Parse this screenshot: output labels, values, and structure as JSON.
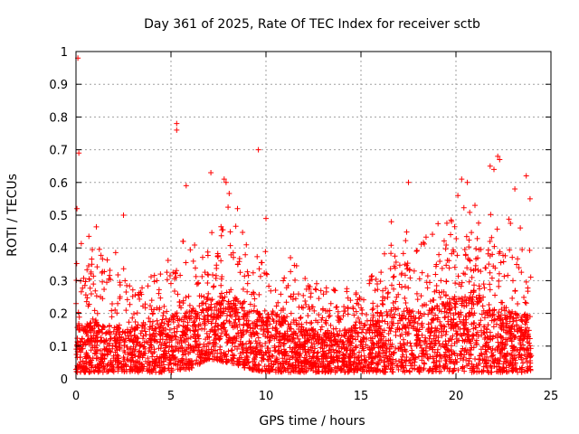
{
  "chart_data": {
    "type": "scatter",
    "title": "Day 361 of 2025, Rate Of TEC Index for receiver sctb",
    "xlabel": "GPS time / hours",
    "ylabel": "ROTI / TECUs",
    "xlim": [
      0,
      25
    ],
    "ylim": [
      0,
      1
    ],
    "xticks": [
      0,
      5,
      10,
      15,
      20,
      25
    ],
    "yticks": [
      0,
      0.1,
      0.2,
      0.3,
      0.4,
      0.5,
      0.6,
      0.7,
      0.8,
      0.9,
      1
    ],
    "grid": true,
    "marker": "+",
    "color": "#ff0000",
    "series": [
      {
        "notable_points": [
          {
            "x": 0.1,
            "y": 0.98
          },
          {
            "x": 0.15,
            "y": 0.69
          },
          {
            "x": 0.05,
            "y": 0.52
          },
          {
            "x": 5.3,
            "y": 0.78
          },
          {
            "x": 5.3,
            "y": 0.76
          },
          {
            "x": 9.6,
            "y": 0.7
          },
          {
            "x": 7.1,
            "y": 0.63
          },
          {
            "x": 5.8,
            "y": 0.59
          },
          {
            "x": 7.8,
            "y": 0.61
          },
          {
            "x": 7.9,
            "y": 0.6
          },
          {
            "x": 17.5,
            "y": 0.6
          },
          {
            "x": 20.3,
            "y": 0.61
          },
          {
            "x": 20.6,
            "y": 0.6
          },
          {
            "x": 22.2,
            "y": 0.68
          },
          {
            "x": 22.3,
            "y": 0.67
          },
          {
            "x": 22.0,
            "y": 0.64
          },
          {
            "x": 21.8,
            "y": 0.65
          },
          {
            "x": 23.7,
            "y": 0.62
          },
          {
            "x": 20.1,
            "y": 0.56
          },
          {
            "x": 23.1,
            "y": 0.58
          },
          {
            "x": 23.9,
            "y": 0.55
          },
          {
            "x": 10.0,
            "y": 0.49
          },
          {
            "x": 2.5,
            "y": 0.5
          },
          {
            "x": 16.6,
            "y": 0.48
          },
          {
            "x": 21.0,
            "y": 0.53
          },
          {
            "x": 8.5,
            "y": 0.52
          }
        ],
        "envelope": [
          {
            "x": 0,
            "low": 0.02,
            "typ": 0.1,
            "high": 0.4
          },
          {
            "x": 1,
            "low": 0.02,
            "typ": 0.11,
            "high": 0.45
          },
          {
            "x": 2,
            "low": 0.02,
            "typ": 0.1,
            "high": 0.38
          },
          {
            "x": 3,
            "low": 0.02,
            "typ": 0.1,
            "high": 0.35
          },
          {
            "x": 4,
            "low": 0.02,
            "typ": 0.11,
            "high": 0.3
          },
          {
            "x": 5,
            "low": 0.02,
            "typ": 0.12,
            "high": 0.42
          },
          {
            "x": 6,
            "low": 0.03,
            "typ": 0.13,
            "high": 0.4
          },
          {
            "x": 7,
            "low": 0.06,
            "typ": 0.16,
            "high": 0.42
          },
          {
            "x": 8,
            "low": 0.05,
            "typ": 0.17,
            "high": 0.55
          },
          {
            "x": 9,
            "low": 0.03,
            "typ": 0.14,
            "high": 0.42
          },
          {
            "x": 10,
            "low": 0.02,
            "typ": 0.12,
            "high": 0.38
          },
          {
            "x": 11,
            "low": 0.02,
            "typ": 0.12,
            "high": 0.4
          },
          {
            "x": 12,
            "low": 0.02,
            "typ": 0.1,
            "high": 0.3
          },
          {
            "x": 13,
            "low": 0.02,
            "typ": 0.09,
            "high": 0.28
          },
          {
            "x": 14,
            "low": 0.02,
            "typ": 0.09,
            "high": 0.25
          },
          {
            "x": 15,
            "low": 0.02,
            "typ": 0.11,
            "high": 0.38
          },
          {
            "x": 16,
            "low": 0.02,
            "typ": 0.13,
            "high": 0.42
          },
          {
            "x": 17,
            "low": 0.02,
            "typ": 0.14,
            "high": 0.45
          },
          {
            "x": 18,
            "low": 0.02,
            "typ": 0.13,
            "high": 0.42
          },
          {
            "x": 19,
            "low": 0.02,
            "typ": 0.14,
            "high": 0.45
          },
          {
            "x": 20,
            "low": 0.02,
            "typ": 0.16,
            "high": 0.5
          },
          {
            "x": 21,
            "low": 0.02,
            "typ": 0.17,
            "high": 0.5
          },
          {
            "x": 22,
            "low": 0.02,
            "typ": 0.14,
            "high": 0.5
          },
          {
            "x": 23,
            "low": 0.02,
            "typ": 0.13,
            "high": 0.48
          },
          {
            "x": 24,
            "low": 0.02,
            "typ": 0.12,
            "high": 0.4
          }
        ]
      }
    ]
  }
}
